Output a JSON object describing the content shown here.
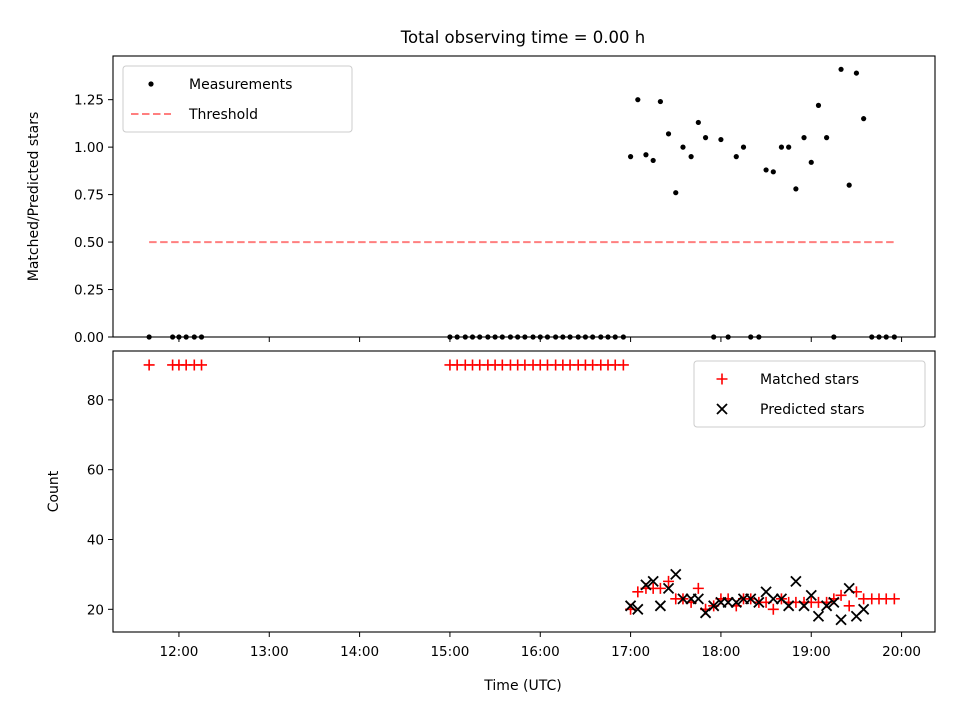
{
  "chart_data": {
    "type": "scatter",
    "title": "Total observing time = 0.00 h",
    "xlabel": "Time (UTC)",
    "x_ticks": [
      {
        "hour": 12,
        "label": "12:00"
      },
      {
        "hour": 13,
        "label": "13:00"
      },
      {
        "hour": 14,
        "label": "14:00"
      },
      {
        "hour": 15,
        "label": "15:00"
      },
      {
        "hour": 16,
        "label": "16:00"
      },
      {
        "hour": 17,
        "label": "17:00"
      },
      {
        "hour": 18,
        "label": "18:00"
      },
      {
        "hour": 19,
        "label": "19:00"
      },
      {
        "hour": 20,
        "label": "20:00"
      }
    ],
    "xlim": [
      11.27,
      20.37
    ],
    "panels": [
      {
        "ylabel": "Matched/Predicted stars",
        "ylim": [
          0,
          1.48
        ],
        "yticks": [
          0.0,
          0.25,
          0.5,
          0.75,
          1.0,
          1.25
        ],
        "ytick_labels": [
          "0.00",
          "0.25",
          "0.50",
          "0.75",
          "1.00",
          "1.25"
        ],
        "legend_position": "upper-left",
        "series": [
          {
            "name": "Measurements",
            "marker": "dot",
            "color": "#000000",
            "x": [
              11.67,
              11.93,
              12.0,
              12.08,
              12.17,
              12.25,
              15.0,
              15.08,
              15.17,
              15.25,
              15.33,
              15.42,
              15.5,
              15.58,
              15.67,
              15.75,
              15.83,
              15.92,
              16.0,
              16.08,
              16.17,
              16.25,
              16.33,
              16.42,
              16.5,
              16.58,
              16.67,
              16.75,
              16.83,
              16.92,
              17.0,
              17.08,
              17.17,
              17.25,
              17.33,
              17.42,
              17.5,
              17.58,
              17.67,
              17.75,
              17.83,
              17.92,
              18.0,
              18.08,
              18.17,
              18.25,
              18.33,
              18.42,
              18.5,
              18.58,
              18.67,
              18.75,
              18.83,
              18.92,
              19.0,
              19.08,
              19.17,
              19.25,
              19.33,
              19.42,
              19.5,
              19.58,
              19.67,
              19.75,
              19.83,
              19.92
            ],
            "y": [
              0,
              0,
              0,
              0,
              0,
              0,
              0,
              0,
              0,
              0,
              0,
              0,
              0,
              0,
              0,
              0,
              0,
              0,
              0,
              0,
              0,
              0,
              0,
              0,
              0,
              0,
              0,
              0,
              0,
              0,
              0.95,
              1.25,
              0.96,
              0.93,
              1.24,
              1.07,
              0.76,
              1.0,
              0.95,
              1.13,
              1.05,
              0,
              1.04,
              0,
              0.95,
              1.0,
              0,
              0,
              0.88,
              0.87,
              1.0,
              1.0,
              0.78,
              1.05,
              0.92,
              1.22,
              1.05,
              0,
              1.41,
              0.8,
              1.39,
              1.15,
              0,
              0,
              0,
              0
            ]
          },
          {
            "name": "Threshold",
            "marker": "dashed-line",
            "color": "#ff7f7f",
            "x": [
              11.67,
              19.92
            ],
            "y": [
              0.5,
              0.5
            ]
          }
        ]
      },
      {
        "ylabel": "Count",
        "ylim": [
          13.5,
          94
        ],
        "yticks": [
          20,
          40,
          60,
          80
        ],
        "ytick_labels": [
          "20",
          "40",
          "60",
          "80"
        ],
        "legend_position": "upper-right",
        "series": [
          {
            "name": "Matched stars",
            "marker": "plus",
            "color": "#ff0000",
            "x": [
              11.67,
              11.93,
              12.0,
              12.08,
              12.17,
              12.25,
              15.0,
              15.08,
              15.17,
              15.25,
              15.33,
              15.42,
              15.5,
              15.58,
              15.67,
              15.75,
              15.83,
              15.92,
              16.0,
              16.08,
              16.17,
              16.25,
              16.33,
              16.42,
              16.5,
              16.58,
              16.67,
              16.75,
              16.83,
              16.92,
              17.0,
              17.08,
              17.17,
              17.25,
              17.33,
              17.42,
              17.5,
              17.58,
              17.67,
              17.75,
              17.83,
              17.92,
              18.0,
              18.08,
              18.17,
              18.25,
              18.33,
              18.42,
              18.5,
              18.58,
              18.67,
              18.75,
              18.83,
              18.92,
              19.0,
              19.08,
              19.17,
              19.25,
              19.33,
              19.42,
              19.5,
              19.58,
              19.67,
              19.75,
              19.83,
              19.92
            ],
            "y": [
              90,
              90,
              90,
              90,
              90,
              90,
              90,
              90,
              90,
              90,
              90,
              90,
              90,
              90,
              90,
              90,
              90,
              90,
              90,
              90,
              90,
              90,
              90,
              90,
              90,
              90,
              90,
              90,
              90,
              90,
              20,
              25,
              26,
              26,
              26,
              28,
              23,
              23,
              22,
              26,
              20,
              21,
              23,
              23,
              21,
              23,
              23,
              22,
              22,
              20,
              23,
              22,
              22,
              22,
              22,
              22,
              22,
              23,
              24,
              21,
              25,
              23,
              23,
              23,
              23,
              23
            ]
          },
          {
            "name": "Predicted stars",
            "marker": "x",
            "color": "#000000",
            "x": [
              17.0,
              17.08,
              17.17,
              17.25,
              17.33,
              17.42,
              17.5,
              17.58,
              17.67,
              17.75,
              17.83,
              17.92,
              18.0,
              18.08,
              18.17,
              18.25,
              18.33,
              18.42,
              18.5,
              18.58,
              18.67,
              18.75,
              18.83,
              18.92,
              19.0,
              19.08,
              19.17,
              19.25,
              19.33,
              19.42,
              19.5,
              19.58
            ],
            "y": [
              21,
              20,
              27,
              28,
              21,
              26,
              30,
              23,
              23,
              23,
              19,
              21,
              22,
              22,
              22,
              23,
              23,
              22,
              25,
              23,
              23,
              21,
              28,
              21,
              24,
              18,
              21,
              22,
              17,
              26,
              18,
              20
            ]
          }
        ]
      }
    ]
  }
}
